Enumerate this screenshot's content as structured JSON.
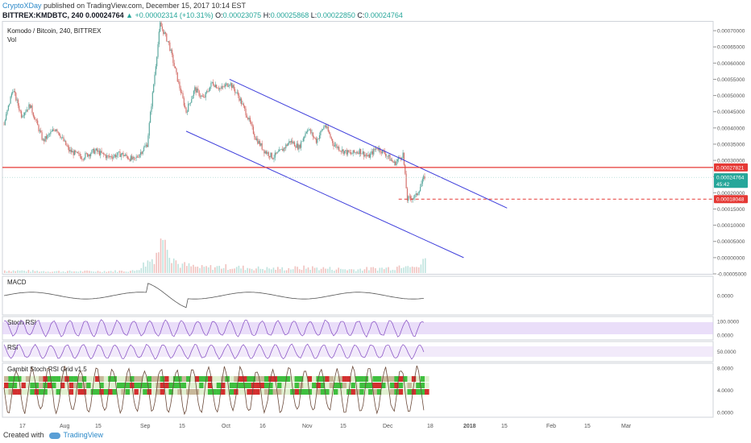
{
  "header": {
    "author": "CryptoXDay",
    "published_text": "published on TradingView.com, December 15, 2017 10:14 EST",
    "symbol_line": "BITTREX:KMDBTC, 240",
    "last": "0.00024764",
    "change": "▲ +0.00002314 (+10.31%)",
    "o_label": "O:",
    "o": "0.00023075",
    "h_label": "H:",
    "h": "0.00025868",
    "l_label": "L:",
    "l": "0.00022850",
    "c_label": "C:",
    "c": "0.00024764"
  },
  "footer": {
    "created_with": "Created with",
    "brand": "TradingView"
  },
  "colors": {
    "up": "#26a69a",
    "down": "#ef5350",
    "channel": "#3f3fdc",
    "resistance": "#e53935",
    "rsi_fill": "#e9dcf7",
    "stoch_fill": "#dcc8f5"
  },
  "chart_data": [
    {
      "type": "candlestick",
      "title": "Komodo / Bitcoin, 240, BITTREX",
      "subtitle": "Vol",
      "x_ticks": [
        "17",
        "Aug",
        "15",
        "Sep",
        "15",
        "Oct",
        "16",
        "Nov",
        "15",
        "Dec",
        "18",
        "2018",
        "15",
        "Feb",
        "15",
        "Mar"
      ],
      "y_ticks": [
        "0.00070000",
        "0.00065000",
        "0.00060000",
        "0.00055000",
        "0.00050000",
        "0.00045000",
        "0.00040000",
        "0.00035000",
        "0.00030000",
        "0.00025000",
        "0.00020000",
        "0.00015000",
        "0.00010000",
        "0.00005000",
        "0.00000000",
        "-0.00005000"
      ],
      "ylim": [
        -5e-05,
        0.00073
      ],
      "price_path": [
        [
          0,
          0.00041
        ],
        [
          2,
          0.00052
        ],
        [
          4,
          0.00044
        ],
        [
          6,
          0.00047
        ],
        [
          9,
          0.00036
        ],
        [
          12,
          0.0004
        ],
        [
          15,
          0.00033
        ],
        [
          18,
          0.00031
        ],
        [
          21,
          0.00033
        ],
        [
          24,
          0.00031
        ],
        [
          27,
          0.00032
        ],
        [
          30,
          0.0003
        ],
        [
          33,
          0.00035
        ],
        [
          36,
          0.00072
        ],
        [
          38,
          0.00066
        ],
        [
          40,
          0.00055
        ],
        [
          42,
          0.00045
        ],
        [
          44,
          0.00052
        ],
        [
          46,
          0.00049
        ],
        [
          48,
          0.00054
        ],
        [
          50,
          0.00052
        ],
        [
          52,
          0.00054
        ],
        [
          54,
          0.0005
        ],
        [
          56,
          0.00044
        ],
        [
          58,
          0.00037
        ],
        [
          60,
          0.00033
        ],
        [
          62,
          0.00031
        ],
        [
          64,
          0.00033
        ],
        [
          66,
          0.00036
        ],
        [
          68,
          0.00034
        ],
        [
          70,
          0.0004
        ],
        [
          72,
          0.00036
        ],
        [
          74,
          0.00041
        ],
        [
          76,
          0.00035
        ],
        [
          78,
          0.00033
        ],
        [
          80,
          0.00032
        ],
        [
          82,
          0.00033
        ],
        [
          84,
          0.00031
        ],
        [
          86,
          0.00034
        ],
        [
          88,
          0.00032
        ],
        [
          90,
          0.00029
        ],
        [
          92,
          0.00032
        ],
        [
          93,
          0.00018
        ],
        [
          95,
          0.00019
        ],
        [
          97,
          0.00025
        ]
      ],
      "volume_path": [
        [
          0,
          0.3
        ],
        [
          10,
          0.2
        ],
        [
          20,
          0.2
        ],
        [
          30,
          0.25
        ],
        [
          34,
          1.6
        ],
        [
          36,
          3.2
        ],
        [
          37,
          6.5
        ],
        [
          38,
          2.5
        ],
        [
          40,
          1.0
        ],
        [
          45,
          0.6
        ],
        [
          50,
          0.7
        ],
        [
          55,
          0.6
        ],
        [
          60,
          0.5
        ],
        [
          65,
          0.5
        ],
        [
          70,
          0.6
        ],
        [
          75,
          0.5
        ],
        [
          80,
          0.4
        ],
        [
          85,
          0.5
        ],
        [
          90,
          0.6
        ],
        [
          93,
          1.3
        ],
        [
          95,
          0.5
        ],
        [
          97,
          1.5
        ]
      ],
      "channel_upper": [
        [
          52,
          0.00055
        ],
        [
          116,
          0.000153
        ]
      ],
      "channel_lower": [
        [
          42,
          0.00039
        ],
        [
          106,
          0.0
        ]
      ],
      "resistance_value": 0.00027821,
      "support_value": 0.00018048,
      "price_labels": [
        {
          "text": "0.00027821",
          "value": 0.00027821,
          "color": "#e53935"
        },
        {
          "text": "0.00024764",
          "value": 0.00024764,
          "color": "#26a69a"
        },
        {
          "text": "45:42",
          "value": 0.0002275,
          "color": "#26a69a"
        },
        {
          "text": "0.00018048",
          "value": 0.00018048,
          "color": "#e53935"
        }
      ]
    },
    {
      "type": "line",
      "title": "MACD",
      "y_ticks": [
        "0.0000"
      ]
    },
    {
      "type": "line",
      "title": "Stoch RSI",
      "y_ticks": [
        "100.0000",
        "0.0000"
      ]
    },
    {
      "type": "line",
      "title": "RSI",
      "y_ticks": [
        "50.0000"
      ]
    },
    {
      "type": "heatmap",
      "title": "Gambit Stoch RSI Grid v1.5",
      "y_ticks": [
        "8.0000",
        "4.0000",
        "0.0000"
      ]
    }
  ]
}
